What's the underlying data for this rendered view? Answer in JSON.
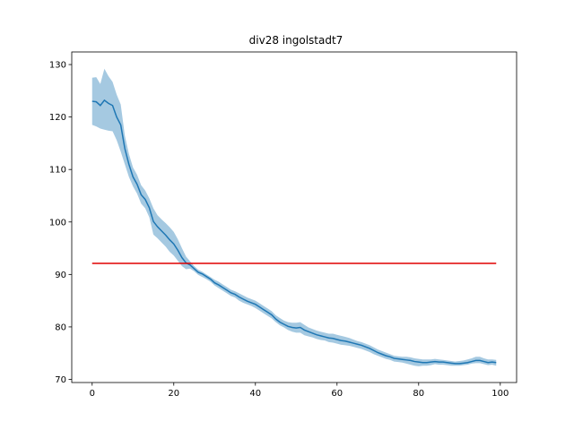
{
  "chart_data": {
    "type": "line",
    "title": "div28 ingolstadt7",
    "xlabel": "",
    "ylabel": "",
    "xlim": [
      -5,
      104
    ],
    "ylim": [
      69.4,
      132.4
    ],
    "xticks": [
      0,
      20,
      40,
      60,
      80,
      100
    ],
    "yticks": [
      70,
      80,
      90,
      100,
      110,
      120,
      130
    ],
    "grid": false,
    "legend": "none",
    "series": [
      {
        "color": "#1f77b4",
        "band_color": "#1f77b4",
        "band_opacity": 0.4,
        "x": [
          0,
          1,
          2,
          3,
          4,
          5,
          6,
          7,
          8,
          9,
          10,
          11,
          12,
          13,
          14,
          15,
          16,
          17,
          18,
          19,
          20,
          21,
          22,
          23,
          24,
          25,
          26,
          27,
          28,
          29,
          30,
          31,
          32,
          33,
          34,
          35,
          36,
          37,
          38,
          39,
          40,
          41,
          42,
          43,
          44,
          45,
          46,
          47,
          48,
          49,
          50,
          51,
          52,
          53,
          54,
          55,
          56,
          57,
          58,
          59,
          60,
          61,
          62,
          63,
          64,
          65,
          66,
          67,
          68,
          69,
          70,
          71,
          72,
          73,
          74,
          75,
          76,
          77,
          78,
          79,
          80,
          81,
          82,
          83,
          84,
          85,
          86,
          87,
          88,
          89,
          90,
          91,
          92,
          93,
          94,
          95,
          96,
          97,
          98,
          99
        ],
        "values": [
          123.0,
          122.9,
          122.2,
          123.2,
          122.6,
          122.2,
          120.0,
          118.5,
          114.0,
          111.0,
          108.6,
          107.2,
          105.2,
          104.3,
          102.7,
          100.1,
          99.1,
          98.3,
          97.5,
          96.6,
          95.8,
          94.6,
          93.2,
          92.2,
          91.8,
          91.1,
          90.4,
          90.1,
          89.6,
          89.1,
          88.4,
          88.0,
          87.5,
          87.0,
          86.5,
          86.2,
          85.7,
          85.3,
          84.9,
          84.6,
          84.3,
          83.8,
          83.3,
          82.8,
          82.3,
          81.5,
          80.9,
          80.5,
          80.1,
          79.9,
          79.8,
          79.9,
          79.4,
          79.1,
          78.8,
          78.5,
          78.3,
          78.1,
          77.9,
          77.8,
          77.6,
          77.4,
          77.3,
          77.1,
          76.9,
          76.7,
          76.5,
          76.2,
          75.9,
          75.5,
          75.1,
          74.8,
          74.5,
          74.3,
          74.0,
          73.9,
          73.8,
          73.7,
          73.6,
          73.4,
          73.3,
          73.2,
          73.2,
          73.3,
          73.4,
          73.3,
          73.3,
          73.2,
          73.1,
          73.0,
          73.0,
          73.1,
          73.2,
          73.4,
          73.6,
          73.6,
          73.4,
          73.2,
          73.3,
          73.2
        ],
        "upper": [
          127.5,
          127.6,
          126.3,
          129.2,
          127.8,
          126.7,
          124.3,
          122.4,
          116.5,
          113.0,
          110.4,
          109.0,
          107.0,
          106.0,
          104.5,
          102.6,
          101.3,
          100.5,
          99.8,
          99.0,
          98.1,
          96.7,
          95.0,
          93.4,
          92.5,
          91.6,
          90.9,
          90.5,
          90.0,
          89.5,
          89.0,
          88.6,
          88.1,
          87.6,
          87.1,
          86.8,
          86.4,
          86.0,
          85.6,
          85.3,
          85.0,
          84.5,
          84.0,
          83.5,
          83.0,
          82.2,
          81.7,
          81.2,
          80.9,
          80.8,
          80.8,
          80.9,
          80.4,
          79.9,
          79.6,
          79.3,
          79.1,
          78.9,
          78.7,
          78.7,
          78.5,
          78.3,
          78.1,
          77.9,
          77.6,
          77.3,
          77.1,
          76.8,
          76.5,
          76.1,
          75.7,
          75.4,
          75.1,
          74.8,
          74.5,
          74.4,
          74.3,
          74.3,
          74.2,
          74.0,
          73.9,
          73.8,
          73.8,
          73.8,
          73.9,
          73.8,
          73.7,
          73.6,
          73.5,
          73.4,
          73.5,
          73.6,
          73.8,
          74.0,
          74.3,
          74.3,
          74.0,
          73.8,
          73.8,
          73.7
        ],
        "lower": [
          118.5,
          118.2,
          117.8,
          117.6,
          117.4,
          117.3,
          115.6,
          113.4,
          111.0,
          108.6,
          106.8,
          105.4,
          103.5,
          102.6,
          100.9,
          97.6,
          96.9,
          96.1,
          95.3,
          94.3,
          93.6,
          92.6,
          91.6,
          91.0,
          91.1,
          90.6,
          89.9,
          89.5,
          89.1,
          88.6,
          87.9,
          87.4,
          86.9,
          86.4,
          85.9,
          85.6,
          85.0,
          84.6,
          84.3,
          84.0,
          83.6,
          83.1,
          82.6,
          82.1,
          81.6,
          80.9,
          80.3,
          79.9,
          79.4,
          79.1,
          78.9,
          78.9,
          78.4,
          78.2,
          78.0,
          77.7,
          77.5,
          77.4,
          77.1,
          77.0,
          76.8,
          76.6,
          76.5,
          76.4,
          76.2,
          76.0,
          75.8,
          75.5,
          75.2,
          74.8,
          74.5,
          74.2,
          73.9,
          73.7,
          73.4,
          73.3,
          73.2,
          73.0,
          72.8,
          72.6,
          72.5,
          72.6,
          72.6,
          72.7,
          72.9,
          72.8,
          72.8,
          72.7,
          72.6,
          72.6,
          72.6,
          72.7,
          72.8,
          73.0,
          73.1,
          73.1,
          72.9,
          72.7,
          72.8,
          72.6
        ]
      },
      {
        "color": "#e00000",
        "x": [
          0,
          99
        ],
        "values": [
          92.1,
          92.1
        ]
      }
    ]
  }
}
